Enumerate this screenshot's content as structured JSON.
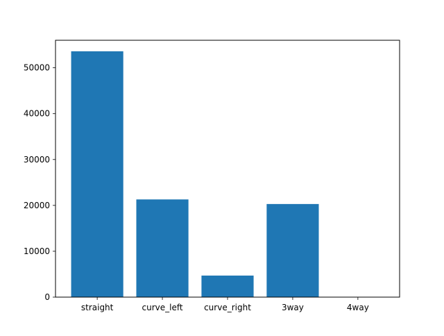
{
  "chart_data": {
    "type": "bar",
    "title": "",
    "xlabel": "",
    "ylabel": "",
    "categories": [
      "straight",
      "curve_left",
      "curve_right",
      "3way",
      "4way"
    ],
    "values": [
      53600,
      21300,
      4700,
      20300,
      0
    ],
    "ylim": [
      0,
      56000
    ],
    "yticks": [
      0,
      10000,
      20000,
      30000,
      40000,
      50000
    ],
    "grid": false,
    "legend": "none",
    "bar_color": "#1f77b4"
  }
}
